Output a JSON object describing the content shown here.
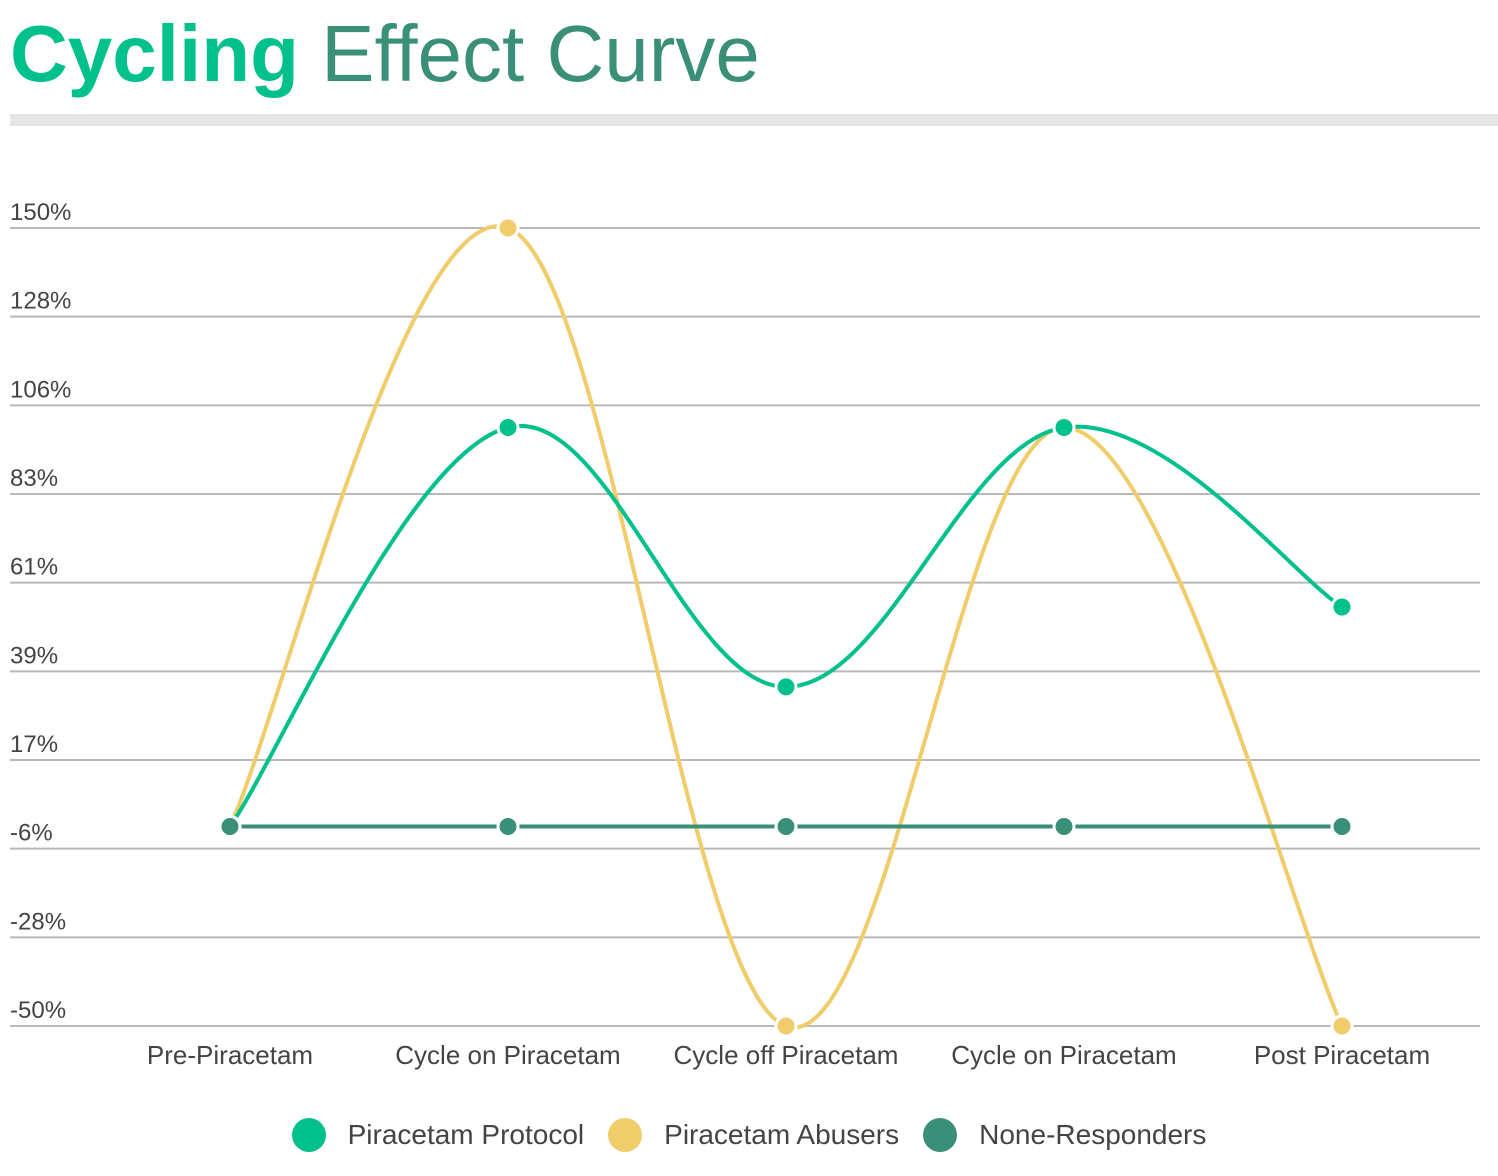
{
  "title": {
    "bold": "Cycling",
    "rest": " Effect Curve"
  },
  "chart_data": {
    "type": "line",
    "categories": [
      "Pre-Piracetam",
      "Cycle on Piracetam",
      "Cycle off Piracetam",
      "Cycle on Piracetam",
      "Post Piracetam"
    ],
    "yticks": [
      "150%",
      "128%",
      "106%",
      "83%",
      "61%",
      "39%",
      "17%",
      "-6%",
      "-28%",
      "-50%"
    ],
    "ylim": [
      -50,
      150
    ],
    "grid": true,
    "smooth": true,
    "legend_position": "bottom",
    "series": [
      {
        "name": "Piracetam Protocol",
        "color": "#00c08b",
        "values": [
          0,
          100,
          35,
          100,
          55
        ]
      },
      {
        "name": "Piracetam Abusers",
        "color": "#f0cc6b",
        "values": [
          0,
          150,
          -50,
          100,
          -50
        ]
      },
      {
        "name": "None-Responders",
        "color": "#3a8f78",
        "values": [
          0,
          0,
          0,
          0,
          0
        ]
      }
    ]
  }
}
